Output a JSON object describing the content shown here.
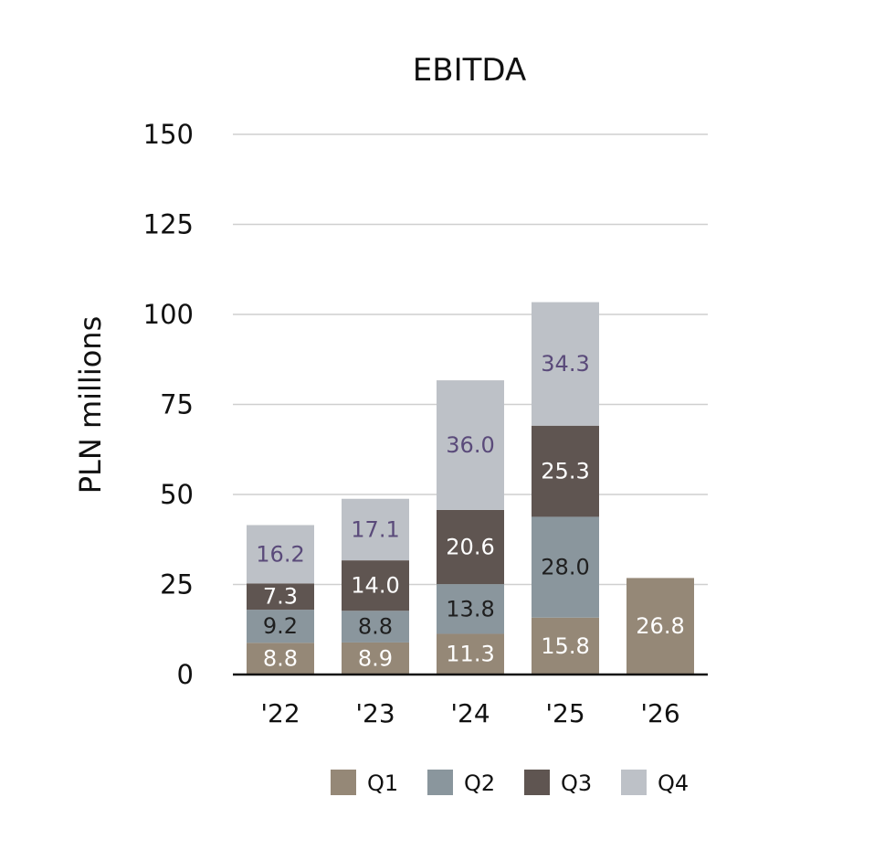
{
  "chart_data": {
    "type": "bar",
    "stacked": true,
    "title": "EBITDA",
    "ylabel": "PLN millions",
    "xlabel": "",
    "categories": [
      "'22",
      "'23",
      "'24",
      "'25",
      "'26"
    ],
    "ylim": [
      0,
      150
    ],
    "yticks": [
      0,
      25,
      50,
      75,
      100,
      125,
      150
    ],
    "grid": true,
    "legend_position": "bottom",
    "series": [
      {
        "name": "Q1",
        "color": "#958877",
        "label_color": "#ffffff",
        "values": [
          8.8,
          8.9,
          11.3,
          15.8,
          26.8
        ]
      },
      {
        "name": "Q2",
        "color": "#8a969d",
        "label_color": "#1f1f1f",
        "values": [
          9.2,
          8.8,
          13.8,
          28.0,
          null
        ]
      },
      {
        "name": "Q3",
        "color": "#5f5551",
        "label_color": "#ffffff",
        "values": [
          7.3,
          14.0,
          20.6,
          25.3,
          null
        ]
      },
      {
        "name": "Q4",
        "color": "#bdc1c7",
        "label_color": "#5a4a7a",
        "values": [
          16.2,
          17.1,
          36.0,
          34.3,
          null
        ]
      }
    ]
  }
}
